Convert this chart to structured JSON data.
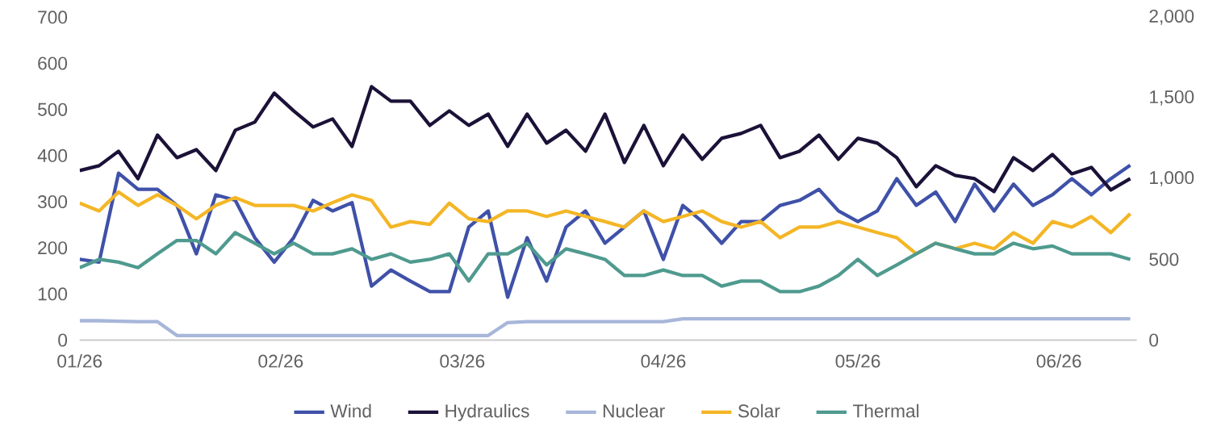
{
  "chart_data": {
    "type": "line",
    "x": [
      "2026-01-01",
      "2026-01-04",
      "2026-01-07",
      "2026-01-10",
      "2026-01-13",
      "2026-01-16",
      "2026-01-19",
      "2026-01-22",
      "2026-01-25",
      "2026-01-28",
      "2026-01-31",
      "2026-02-03",
      "2026-02-06",
      "2026-02-09",
      "2026-02-12",
      "2026-02-15",
      "2026-02-18",
      "2026-02-21",
      "2026-02-24",
      "2026-02-27",
      "2026-03-02",
      "2026-03-05",
      "2026-03-08",
      "2026-03-11",
      "2026-03-14",
      "2026-03-17",
      "2026-03-20",
      "2026-03-23",
      "2026-03-26",
      "2026-03-29",
      "2026-04-01",
      "2026-04-04",
      "2026-04-07",
      "2026-04-10",
      "2026-04-13",
      "2026-04-16",
      "2026-04-19",
      "2026-04-22",
      "2026-04-25",
      "2026-04-28",
      "2026-05-01",
      "2026-05-04",
      "2026-05-07",
      "2026-05-10",
      "2026-05-13",
      "2026-05-16",
      "2026-05-19",
      "2026-05-22",
      "2026-05-25",
      "2026-05-28",
      "2026-05-31",
      "2026-06-03",
      "2026-06-06",
      "2026-06-09",
      "2026-06-12"
    ],
    "series": [
      {
        "name": "Wind",
        "color": "#3f51a8",
        "values": [
          175,
          169,
          362,
          327,
          327,
          292,
          187,
          315,
          303,
          222,
          169,
          222,
          303,
          280,
          298,
          117,
          152,
          128,
          105,
          105,
          245,
          280,
          93,
          222,
          128,
          245,
          280,
          210,
          245,
          280,
          175,
          292,
          257,
          210,
          257,
          257,
          292,
          303,
          327,
          280,
          257,
          280,
          350,
          292,
          321,
          257,
          338,
          280,
          338,
          292,
          315,
          350,
          315,
          350,
          379
        ]
      },
      {
        "name": "Hydraulics",
        "color": "#1c1238",
        "axis": "y2",
        "values": [
          1050,
          1080,
          1170,
          1000,
          1270,
          1130,
          1180,
          1050,
          1300,
          1350,
          1530,
          1420,
          1320,
          1370,
          1200,
          1570,
          1480,
          1480,
          1330,
          1420,
          1330,
          1400,
          1200,
          1400,
          1220,
          1300,
          1170,
          1400,
          1100,
          1330,
          1080,
          1270,
          1120,
          1250,
          1280,
          1330,
          1130,
          1170,
          1270,
          1120,
          1250,
          1220,
          1130,
          950,
          1080,
          1020,
          1000,
          920,
          1130,
          1050,
          1150,
          1030,
          1070,
          930,
          1000
        ]
      },
      {
        "name": "Nuclear",
        "color": "#a7b6d9",
        "values": [
          42,
          42,
          41,
          40,
          40,
          10,
          10,
          10,
          10,
          10,
          10,
          10,
          10,
          10,
          10,
          10,
          10,
          10,
          10,
          10,
          10,
          10,
          38,
          40,
          40,
          40,
          40,
          40,
          40,
          40,
          40,
          46,
          46,
          46,
          46,
          46,
          46,
          46,
          46,
          46,
          46,
          46,
          46,
          46,
          46,
          46,
          46,
          46,
          46,
          46,
          46,
          46,
          46,
          46,
          46
        ]
      },
      {
        "name": "Solar",
        "color": "#f4b626",
        "values": [
          297,
          280,
          321,
          292,
          315,
          292,
          263,
          292,
          309,
          292,
          292,
          292,
          280,
          298,
          315,
          303,
          245,
          257,
          251,
          297,
          263,
          257,
          280,
          280,
          268,
          280,
          268,
          257,
          245,
          280,
          257,
          268,
          280,
          257,
          245,
          257,
          222,
          245,
          245,
          257,
          245,
          233,
          222,
          187,
          210,
          198,
          210,
          198,
          233,
          210,
          257,
          245,
          268,
          233,
          274
        ]
      },
      {
        "name": "Thermal",
        "color": "#4f9a8f",
        "values": [
          157,
          175,
          169,
          157,
          187,
          216,
          216,
          187,
          233,
          210,
          187,
          210,
          187,
          187,
          198,
          175,
          187,
          169,
          175,
          187,
          128,
          187,
          187,
          210,
          163,
          198,
          187,
          175,
          140,
          140,
          152,
          140,
          140,
          117,
          128,
          128,
          105,
          105,
          117,
          140,
          175,
          140,
          163,
          187,
          210,
          198,
          187,
          187,
          210,
          198,
          204,
          187,
          187,
          187,
          175
        ]
      }
    ],
    "xlim": [
      "2026-01-01",
      "2026-06-13"
    ],
    "xticks": [
      {
        "value": "2026-01-01",
        "label": "01/26"
      },
      {
        "value": "2026-02-01",
        "label": "02/26"
      },
      {
        "value": "2026-03-01",
        "label": "03/26"
      },
      {
        "value": "2026-04-01",
        "label": "04/26"
      },
      {
        "value": "2026-05-01",
        "label": "05/26"
      },
      {
        "value": "2026-06-01",
        "label": "06/26"
      }
    ],
    "ylim": [
      0,
      700
    ],
    "yticks": [
      0,
      100,
      200,
      300,
      400,
      500,
      600,
      700
    ],
    "y2lim": [
      0,
      2000
    ],
    "y2ticks": [
      0,
      500,
      {
        "value": 1000,
        "label": "1,000"
      },
      {
        "value": 1500,
        "label": "1,500"
      },
      {
        "value": 2000,
        "label": "2,000"
      }
    ],
    "grid": false,
    "legend": "bottom",
    "marker": "none",
    "line_style": "solid"
  }
}
